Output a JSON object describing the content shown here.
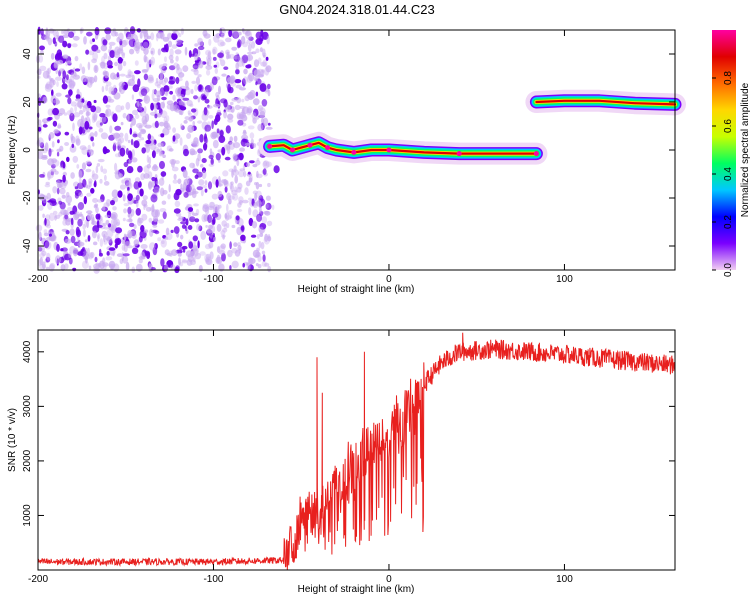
{
  "title": "GN04.2024.318.01.44.C23",
  "colors": {
    "scatter_light": "#c8a8f0",
    "scatter_dark": "#6a00e6",
    "snr_line": "#e8201e",
    "colormap": [
      "#f2d0f2",
      "#7a00ff",
      "#0000ff",
      "#00c8ff",
      "#00ff60",
      "#c8ff00",
      "#ffd700",
      "#ff6a00",
      "#e00000",
      "#ff00a0"
    ]
  },
  "chart_data": [
    {
      "type": "heatmap",
      "xlabel": "Height of straight line (km)",
      "ylabel": "Frequency (Hz)",
      "xlim": [
        -200,
        163
      ],
      "ylim": [
        -50,
        50
      ],
      "x_ticks": [
        "-200",
        "-100",
        "0",
        "100"
      ],
      "x_tick_values": [
        -200,
        -100,
        0,
        100
      ],
      "y_ticks": [
        "-40",
        "-20",
        "0",
        "20",
        "40"
      ],
      "y_tick_values": [
        -40,
        -20,
        0,
        20,
        40
      ],
      "noise_region": {
        "x_from": -200,
        "x_to": -68
      },
      "track": [
        {
          "x": -68,
          "y": 1.5
        },
        {
          "x": -60,
          "y": 2
        },
        {
          "x": -55,
          "y": 0
        },
        {
          "x": -50,
          "y": 1
        },
        {
          "x": -45,
          "y": 2
        },
        {
          "x": -40,
          "y": 3
        },
        {
          "x": -35,
          "y": 1
        },
        {
          "x": -30,
          "y": 0
        },
        {
          "x": -20,
          "y": -1
        },
        {
          "x": -10,
          "y": 0
        },
        {
          "x": 0,
          "y": 0
        },
        {
          "x": 20,
          "y": -1
        },
        {
          "x": 40,
          "y": -1.5
        },
        {
          "x": 60,
          "y": -1.5
        },
        {
          "x": 84,
          "y": -1.5
        }
      ],
      "track2": [
        {
          "x": 84,
          "y": 20
        },
        {
          "x": 100,
          "y": 20.5
        },
        {
          "x": 120,
          "y": 20.5
        },
        {
          "x": 140,
          "y": 19.5
        },
        {
          "x": 163,
          "y": 19
        }
      ],
      "colorbar": {
        "label": "Normalized spectral amplitude",
        "ticks": [
          "0.0",
          "0.2",
          "0.4",
          "0.6",
          "0.8"
        ],
        "tick_values": [
          0,
          0.2,
          0.4,
          0.6,
          0.8
        ],
        "range": [
          0,
          1
        ]
      }
    },
    {
      "type": "line",
      "xlabel": "Height of straight line (km)",
      "ylabel": "SNR (10 * v/v)",
      "xlim": [
        -200,
        163
      ],
      "ylim": [
        0,
        4400
      ],
      "x_ticks": [
        "-200",
        "-100",
        "0",
        "100"
      ],
      "x_tick_values": [
        -200,
        -100,
        0,
        100
      ],
      "y_ticks": [
        "1000",
        "2000",
        "3000",
        "4000"
      ],
      "y_tick_values": [
        1000,
        2000,
        3000,
        4000
      ],
      "envelope": [
        {
          "x": -200,
          "y": 150
        },
        {
          "x": -100,
          "y": 150
        },
        {
          "x": -60,
          "y": 180
        },
        {
          "x": -50,
          "y": 900
        },
        {
          "x": -40,
          "y": 1000
        },
        {
          "x": -30,
          "y": 1500
        },
        {
          "x": -20,
          "y": 1900
        },
        {
          "x": -10,
          "y": 2200
        },
        {
          "x": 0,
          "y": 2500
        },
        {
          "x": 10,
          "y": 2900
        },
        {
          "x": 20,
          "y": 3400
        },
        {
          "x": 30,
          "y": 3800
        },
        {
          "x": 40,
          "y": 4000
        },
        {
          "x": 60,
          "y": 4050
        },
        {
          "x": 100,
          "y": 3950
        },
        {
          "x": 130,
          "y": 3850
        },
        {
          "x": 163,
          "y": 3750
        }
      ],
      "spikes": [
        {
          "x": -41,
          "y": 3900
        },
        {
          "x": -38,
          "y": 3250
        },
        {
          "x": -14,
          "y": 4000
        },
        {
          "x": 42,
          "y": 4350
        }
      ]
    }
  ]
}
